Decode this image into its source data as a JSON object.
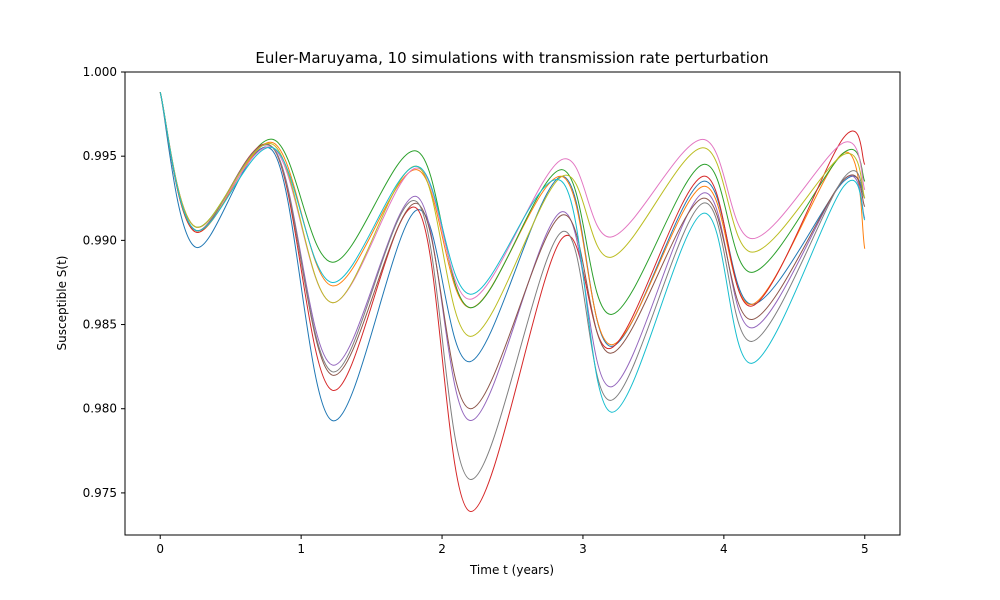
{
  "chart_data": {
    "type": "line",
    "title": "Euler-Maruyama, 10 simulations with transmission rate perturbation",
    "xlabel": "Time t (years)",
    "ylabel": "Susceptible S(t)",
    "xlim": [
      -0.25,
      5.25
    ],
    "ylim": [
      0.9725,
      1.0
    ],
    "xticks": [
      0,
      1,
      2,
      3,
      4,
      5
    ],
    "xtick_labels": [
      "0",
      "1",
      "2",
      "3",
      "4",
      "5"
    ],
    "yticks": [
      0.975,
      0.98,
      0.985,
      0.99,
      0.995,
      1.0
    ],
    "ytick_labels": [
      "0.975",
      "0.980",
      "0.985",
      "0.990",
      "0.995",
      "1.000"
    ],
    "grid": false,
    "legend": "none",
    "series": [
      {
        "color": "#1f77b4",
        "values": [
          [
            0,
            0.9988
          ],
          [
            0.25,
            0.9896
          ],
          [
            0.8,
            0.9953
          ],
          [
            1.22,
            0.9793
          ],
          [
            1.82,
            0.9918
          ],
          [
            2.2,
            0.9828
          ],
          [
            2.85,
            0.9938
          ],
          [
            3.2,
            0.9837
          ],
          [
            3.85,
            0.9935
          ],
          [
            4.2,
            0.9862
          ],
          [
            4.85,
            0.9935
          ],
          [
            5.0,
            0.9925
          ]
        ]
      },
      {
        "color": "#ff7f0e",
        "values": [
          [
            0,
            0.9988
          ],
          [
            0.25,
            0.9905
          ],
          [
            0.8,
            0.9958
          ],
          [
            1.22,
            0.9873
          ],
          [
            1.82,
            0.9942
          ],
          [
            2.2,
            0.986
          ],
          [
            2.85,
            0.9938
          ],
          [
            3.2,
            0.9838
          ],
          [
            3.85,
            0.9932
          ],
          [
            4.2,
            0.9862
          ],
          [
            4.85,
            0.9952
          ],
          [
            5.0,
            0.9895
          ]
        ]
      },
      {
        "color": "#2ca02c",
        "values": [
          [
            0,
            0.9988
          ],
          [
            0.25,
            0.9908
          ],
          [
            0.8,
            0.996
          ],
          [
            1.22,
            0.9887
          ],
          [
            1.82,
            0.9953
          ],
          [
            2.2,
            0.986
          ],
          [
            2.85,
            0.9942
          ],
          [
            3.2,
            0.9856
          ],
          [
            3.85,
            0.9945
          ],
          [
            4.2,
            0.9881
          ],
          [
            4.85,
            0.9952
          ],
          [
            5.0,
            0.9935
          ]
        ]
      },
      {
        "color": "#d62728",
        "values": [
          [
            0,
            0.9988
          ],
          [
            0.25,
            0.9905
          ],
          [
            0.8,
            0.9955
          ],
          [
            1.22,
            0.9811
          ],
          [
            1.82,
            0.9919
          ],
          [
            2.2,
            0.9739
          ],
          [
            2.85,
            0.9901
          ],
          [
            3.2,
            0.9836
          ],
          [
            3.85,
            0.9938
          ],
          [
            4.2,
            0.9861
          ],
          [
            4.85,
            0.9961
          ],
          [
            5.0,
            0.9945
          ]
        ]
      },
      {
        "color": "#9467bd",
        "values": [
          [
            0,
            0.9988
          ],
          [
            0.25,
            0.9906
          ],
          [
            0.8,
            0.9955
          ],
          [
            1.22,
            0.9826
          ],
          [
            1.82,
            0.9926
          ],
          [
            2.2,
            0.9793
          ],
          [
            2.85,
            0.9917
          ],
          [
            3.2,
            0.9813
          ],
          [
            3.85,
            0.9928
          ],
          [
            4.2,
            0.9848
          ],
          [
            4.85,
            0.9936
          ],
          [
            5.0,
            0.9913
          ]
        ]
      },
      {
        "color": "#8c564b",
        "values": [
          [
            0,
            0.9988
          ],
          [
            0.25,
            0.9906
          ],
          [
            0.8,
            0.9955
          ],
          [
            1.22,
            0.982
          ],
          [
            1.82,
            0.9922
          ],
          [
            2.2,
            0.98
          ],
          [
            2.85,
            0.9915
          ],
          [
            3.2,
            0.9833
          ],
          [
            3.85,
            0.9925
          ],
          [
            4.2,
            0.9853
          ],
          [
            4.85,
            0.9936
          ],
          [
            5.0,
            0.992
          ]
        ]
      },
      {
        "color": "#e377c2",
        "values": [
          [
            0,
            0.9988
          ],
          [
            0.25,
            0.9908
          ],
          [
            0.8,
            0.9955
          ],
          [
            1.22,
            0.9863
          ],
          [
            1.82,
            0.9943
          ],
          [
            2.2,
            0.9865
          ],
          [
            2.85,
            0.9948
          ],
          [
            3.2,
            0.9902
          ],
          [
            3.85,
            0.996
          ],
          [
            4.2,
            0.9901
          ],
          [
            4.85,
            0.9958
          ],
          [
            5.0,
            0.993
          ]
        ]
      },
      {
        "color": "#7f7f7f",
        "values": [
          [
            0,
            0.9988
          ],
          [
            0.25,
            0.9906
          ],
          [
            0.8,
            0.9955
          ],
          [
            1.22,
            0.9822
          ],
          [
            1.82,
            0.9923
          ],
          [
            2.2,
            0.9758
          ],
          [
            2.85,
            0.9905
          ],
          [
            3.2,
            0.9805
          ],
          [
            3.85,
            0.9922
          ],
          [
            4.2,
            0.984
          ],
          [
            4.85,
            0.9937
          ],
          [
            5.0,
            0.9925
          ]
        ]
      },
      {
        "color": "#bcbd22",
        "values": [
          [
            0,
            0.9988
          ],
          [
            0.25,
            0.9908
          ],
          [
            0.8,
            0.9957
          ],
          [
            1.22,
            0.9863
          ],
          [
            1.82,
            0.9944
          ],
          [
            2.2,
            0.9843
          ],
          [
            2.85,
            0.9938
          ],
          [
            3.2,
            0.989
          ],
          [
            3.85,
            0.9955
          ],
          [
            4.2,
            0.9893
          ],
          [
            4.85,
            0.9951
          ],
          [
            5.0,
            0.9925
          ]
        ]
      },
      {
        "color": "#17becf",
        "values": [
          [
            0,
            0.9988
          ],
          [
            0.25,
            0.9906
          ],
          [
            0.8,
            0.9955
          ],
          [
            1.22,
            0.9875
          ],
          [
            1.82,
            0.9944
          ],
          [
            2.2,
            0.9868
          ],
          [
            2.85,
            0.9935
          ],
          [
            3.2,
            0.9798
          ],
          [
            3.85,
            0.9916
          ],
          [
            4.2,
            0.9827
          ],
          [
            4.85,
            0.9932
          ],
          [
            5.0,
            0.9912
          ]
        ]
      }
    ]
  }
}
